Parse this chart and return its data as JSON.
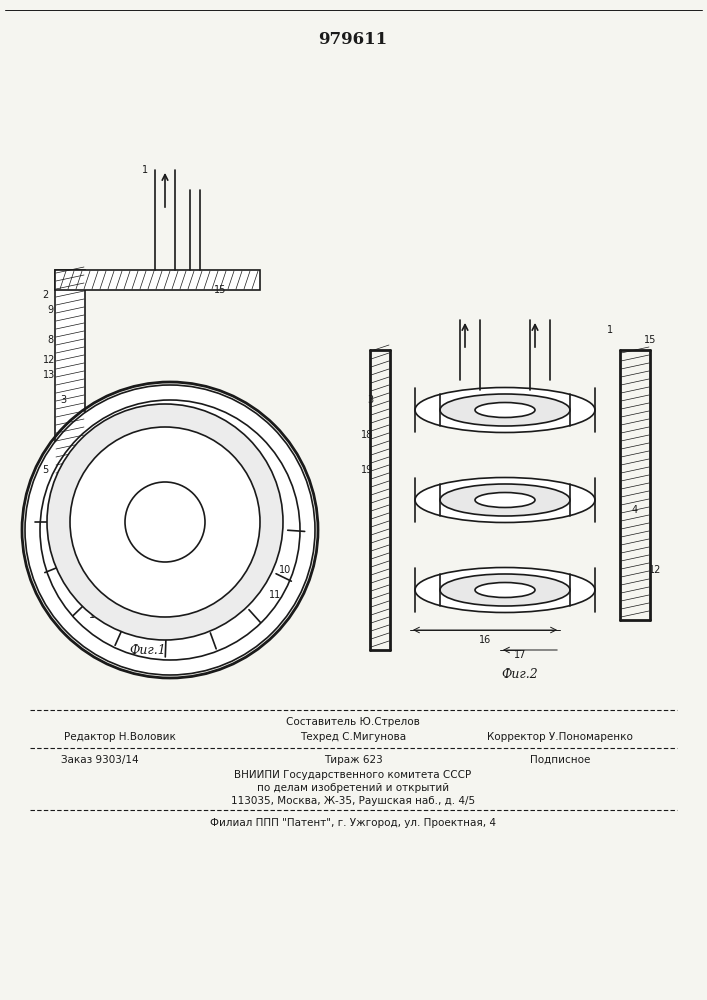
{
  "title": "979611",
  "fig1_label": "Фиг.1",
  "fig2_label": "Фиг.2",
  "footer_line1": "Составитель Ю.Стрелов",
  "footer_line2_left": "Редактор Н.Воловик",
  "footer_line2_mid": "Техред С.Мигунова",
  "footer_line2_right": "Корректор У.Пономаренко",
  "footer_line3_left": "Заказ 9303/14",
  "footer_line3_mid": "Тираж 623",
  "footer_line3_right": "Подписное",
  "footer_line4": "ВНИИПИ Государственного комитета СССР",
  "footer_line5": "по делам изобретений и открытий",
  "footer_line6": "113035, Москва, Ж-35, Раушская наб., д. 4/5",
  "footer_line7": "Филиал ППП \"Патент\", г. Ужгород, ул. Проектная, 4",
  "bg_color": "#f5f5f0",
  "line_color": "#1a1a1a",
  "hatch_color": "#1a1a1a"
}
